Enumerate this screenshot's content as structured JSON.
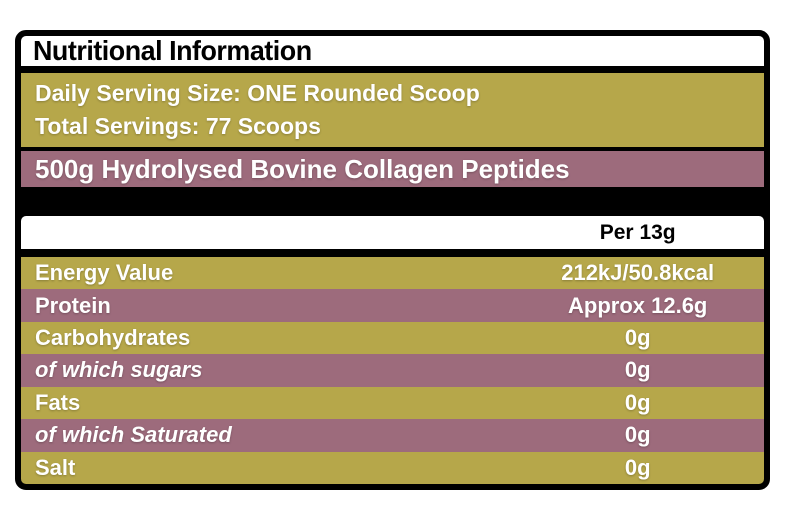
{
  "label": {
    "title": "Nutritional Information",
    "serving_info": {
      "line1": "Daily Serving Size: ONE Rounded Scoop",
      "line2": "Total Servings: 77 Scoops"
    },
    "product": "500g Hydrolysed Bovine Collagen Peptides",
    "column_header": "Per 13g",
    "rows": [
      {
        "name": "Energy Value",
        "value": "212kJ/50.8kcal",
        "italic": false
      },
      {
        "name": "Protein",
        "value": "Approx 12.6g",
        "italic": false
      },
      {
        "name": "Carbohydrates",
        "value": "0g",
        "italic": false
      },
      {
        "name": "of which sugars",
        "value": "0g",
        "italic": true
      },
      {
        "name": "Fats",
        "value": "0g",
        "italic": false
      },
      {
        "name": "of which Saturated",
        "value": "0g",
        "italic": true
      },
      {
        "name": "Salt",
        "value": "0g",
        "italic": false
      }
    ],
    "colors": {
      "olive": "#b6a74a",
      "mauve": "#9d6b7c",
      "black": "#000000",
      "white": "#ffffff"
    }
  }
}
